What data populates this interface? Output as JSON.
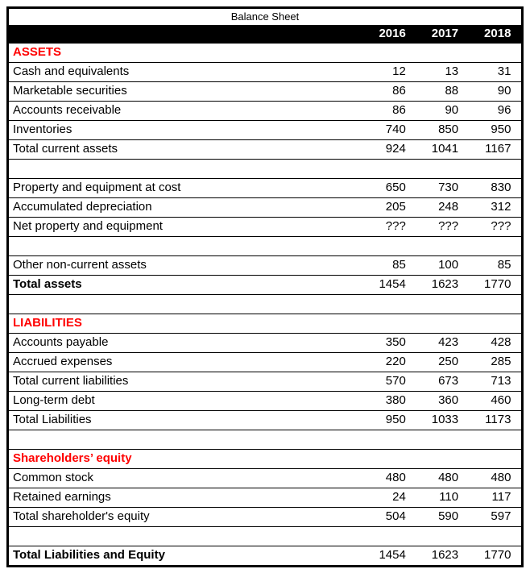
{
  "title": "Balance Sheet",
  "columns": [
    "2016",
    "2017",
    "2018"
  ],
  "colors": {
    "section_header_text": "#ff0000",
    "year_header_bg": "#000000",
    "year_header_text": "#ffffff",
    "border": "#000000",
    "body_text": "#000000",
    "background": "#ffffff"
  },
  "rows": [
    {
      "type": "section",
      "label": "ASSETS",
      "values": [
        "",
        "",
        ""
      ]
    },
    {
      "type": "data",
      "label": "Cash and equivalents",
      "values": [
        "12",
        "13",
        "31"
      ]
    },
    {
      "type": "data",
      "label": "Marketable securities",
      "values": [
        "86",
        "88",
        "90"
      ]
    },
    {
      "type": "data",
      "label": "Accounts receivable",
      "values": [
        "86",
        "90",
        "96"
      ]
    },
    {
      "type": "data",
      "label": "Inventories",
      "values": [
        "740",
        "850",
        "950"
      ]
    },
    {
      "type": "data",
      "label": "Total current assets",
      "values": [
        "924",
        "1041",
        "1167"
      ]
    },
    {
      "type": "empty",
      "label": "",
      "values": [
        "",
        "",
        ""
      ]
    },
    {
      "type": "data",
      "label": "Property and equipment at cost",
      "values": [
        "650",
        "730",
        "830"
      ]
    },
    {
      "type": "data",
      "label": "Accumulated depreciation",
      "values": [
        "205",
        "248",
        "312"
      ]
    },
    {
      "type": "data",
      "label": "Net property and equipment",
      "values": [
        "???",
        "???",
        "???"
      ]
    },
    {
      "type": "empty",
      "label": "",
      "values": [
        "",
        "",
        ""
      ]
    },
    {
      "type": "data",
      "label": "Other non-current assets",
      "values": [
        "85",
        "100",
        "85"
      ]
    },
    {
      "type": "total",
      "label": "Total assets",
      "values": [
        "1454",
        "1623",
        "1770"
      ]
    },
    {
      "type": "empty",
      "label": "",
      "values": [
        "",
        "",
        ""
      ]
    },
    {
      "type": "section",
      "label": "LIABILITIES",
      "values": [
        "",
        "",
        ""
      ]
    },
    {
      "type": "data",
      "label": "Accounts payable",
      "values": [
        "350",
        "423",
        "428"
      ]
    },
    {
      "type": "data",
      "label": "Accrued expenses",
      "values": [
        "220",
        "250",
        "285"
      ]
    },
    {
      "type": "data",
      "label": "Total current liabilities",
      "values": [
        "570",
        "673",
        "713"
      ]
    },
    {
      "type": "data",
      "label": "Long-term debt",
      "values": [
        "380",
        "360",
        "460"
      ]
    },
    {
      "type": "data",
      "label": "Total Liabilities",
      "values": [
        "950",
        "1033",
        "1173"
      ]
    },
    {
      "type": "empty",
      "label": "",
      "values": [
        "",
        "",
        ""
      ]
    },
    {
      "type": "section",
      "label": "Shareholders’ equity",
      "values": [
        "",
        "",
        ""
      ]
    },
    {
      "type": "data",
      "label": "Common stock",
      "values": [
        "480",
        "480",
        "480"
      ]
    },
    {
      "type": "data",
      "label": "Retained earnings",
      "values": [
        "24",
        "110",
        "117"
      ]
    },
    {
      "type": "data",
      "label": "Total shareholder's equity",
      "values": [
        "504",
        "590",
        "597"
      ]
    },
    {
      "type": "empty",
      "label": "",
      "values": [
        "",
        "",
        ""
      ]
    },
    {
      "type": "total",
      "label": "Total Liabilities and Equity",
      "values": [
        "1454",
        "1623",
        "1770"
      ]
    }
  ]
}
